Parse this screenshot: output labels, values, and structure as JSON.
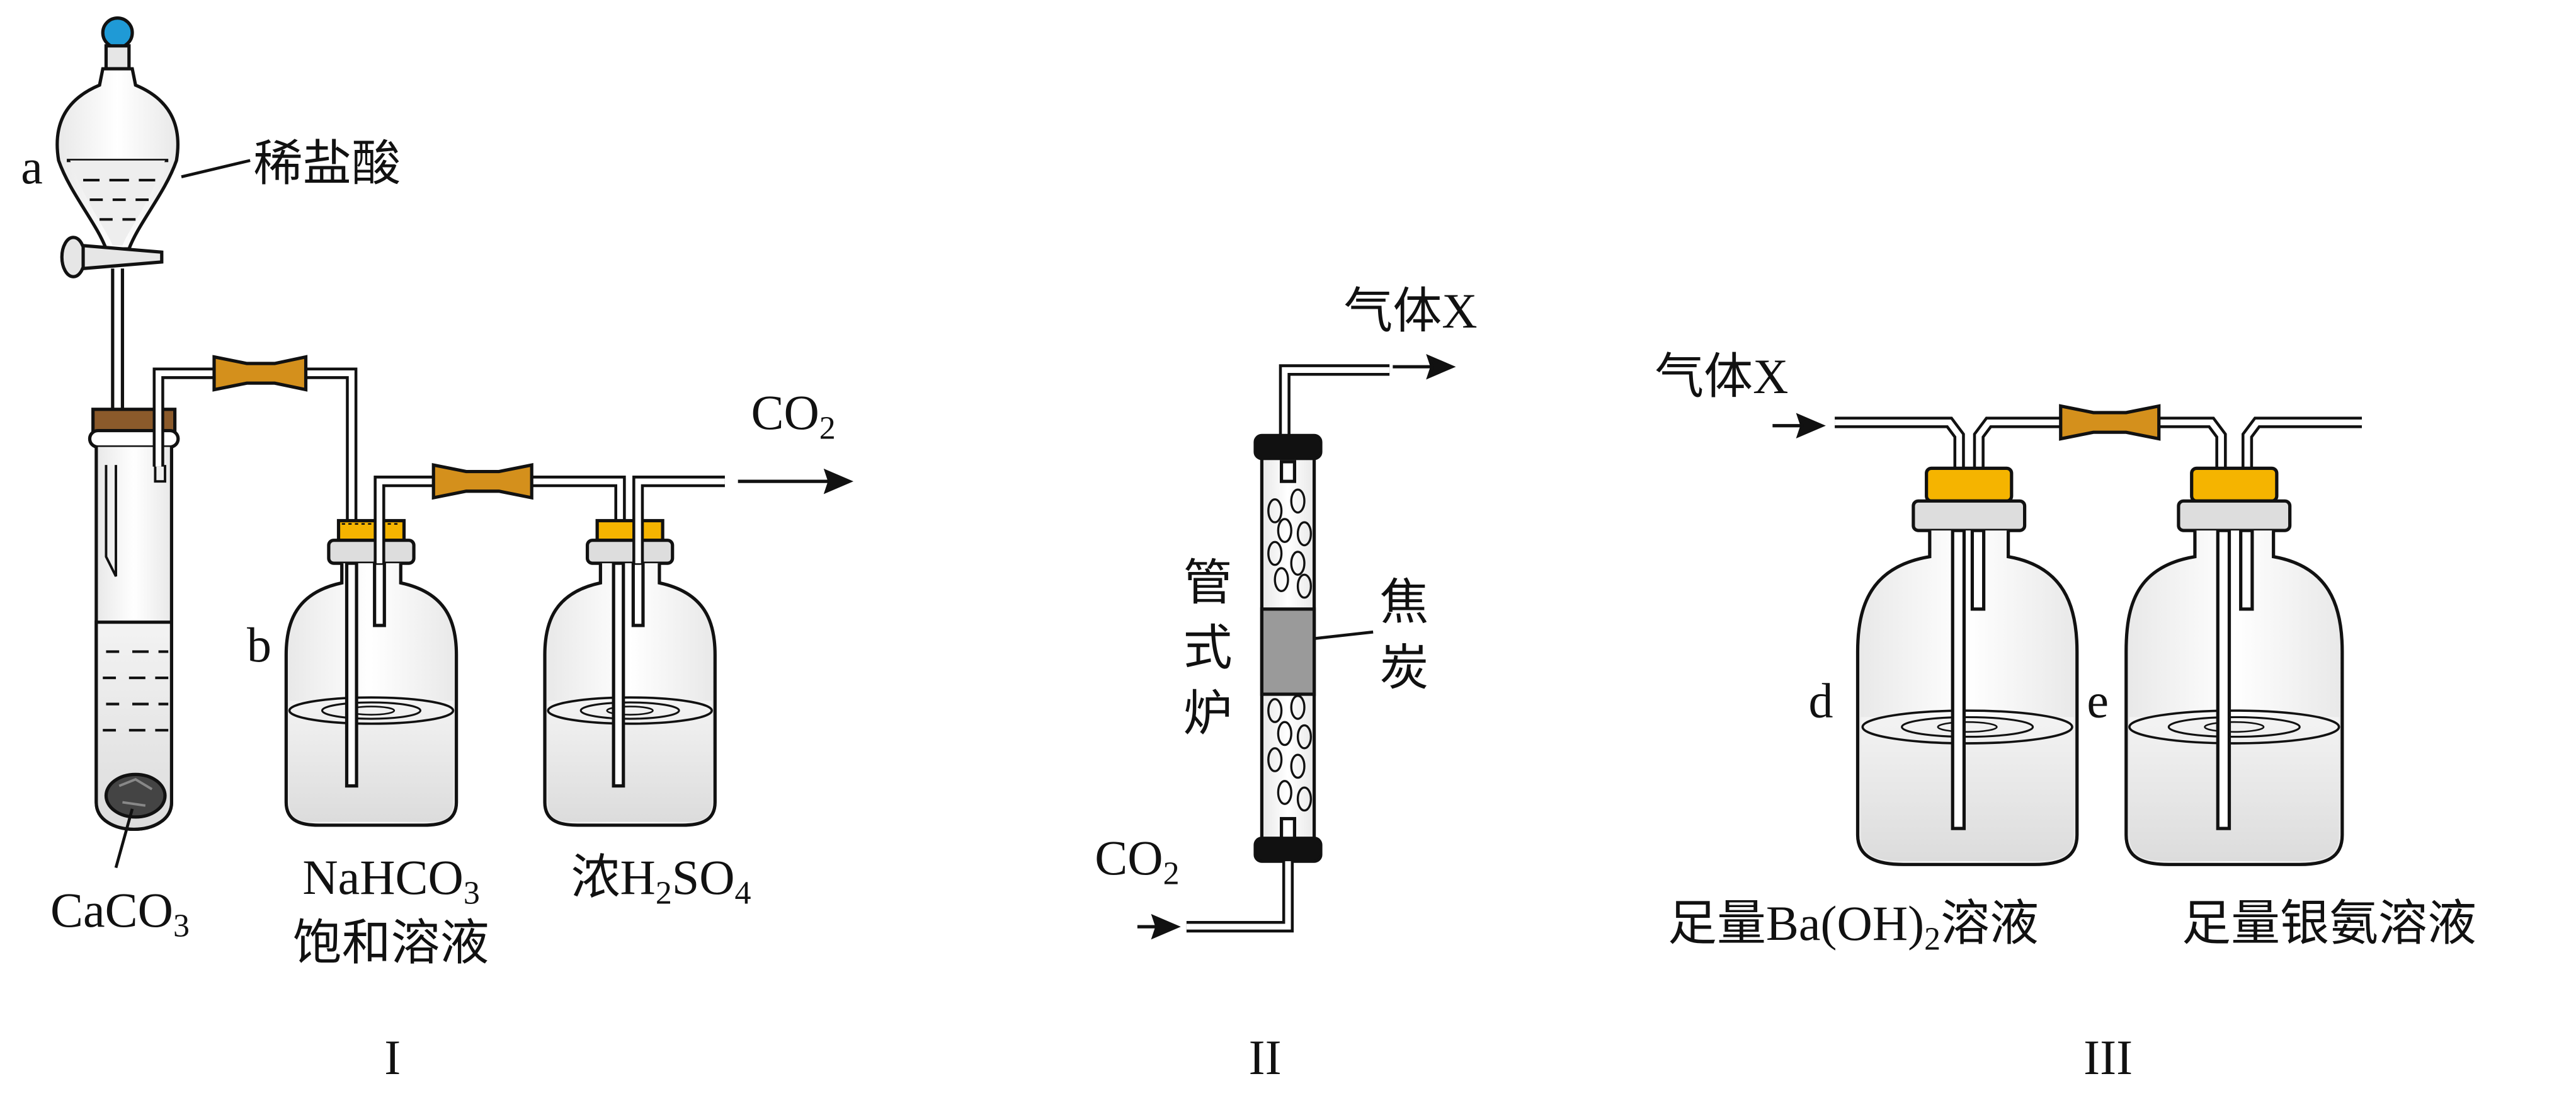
{
  "setup_I": {
    "label_a": "a",
    "label_acid": "稀盐酸",
    "label_b": "b",
    "label_caco3_base": "CaCO",
    "label_caco3_sub": "3",
    "label_nahco3_base": "NaHCO",
    "label_nahco3_sub": "3",
    "label_saturated": "饱和溶液",
    "label_h2so4_pre": "浓H",
    "label_h2so4_sub1": "2",
    "label_h2so4_mid": "SO",
    "label_h2so4_sub2": "4",
    "label_co2_base": "CO",
    "label_co2_sub": "2",
    "roman": "I"
  },
  "setup_II": {
    "label_gas_x": "气体X",
    "label_furnace": [
      "管",
      "式",
      "炉"
    ],
    "label_coke": [
      "焦",
      "炭"
    ],
    "label_co2_base": "CO",
    "label_co2_sub": "2",
    "roman": "II"
  },
  "setup_III": {
    "label_gas_x": "气体X",
    "label_d": "d",
    "label_e": "e",
    "label_baoh_pre": "足量Ba(OH)",
    "label_baoh_sub": "2",
    "label_baoh_post": "溶液",
    "label_silver": "足量银氨溶液",
    "roman": "III"
  },
  "colors": {
    "stopper_yellow": "#f5b400",
    "tube_connector": "#d4901c",
    "cork_brown": "#8b5a2b",
    "funnel_knob": "#1f9ad6",
    "coke_gray": "#9a9a9a",
    "line": "#111111"
  }
}
